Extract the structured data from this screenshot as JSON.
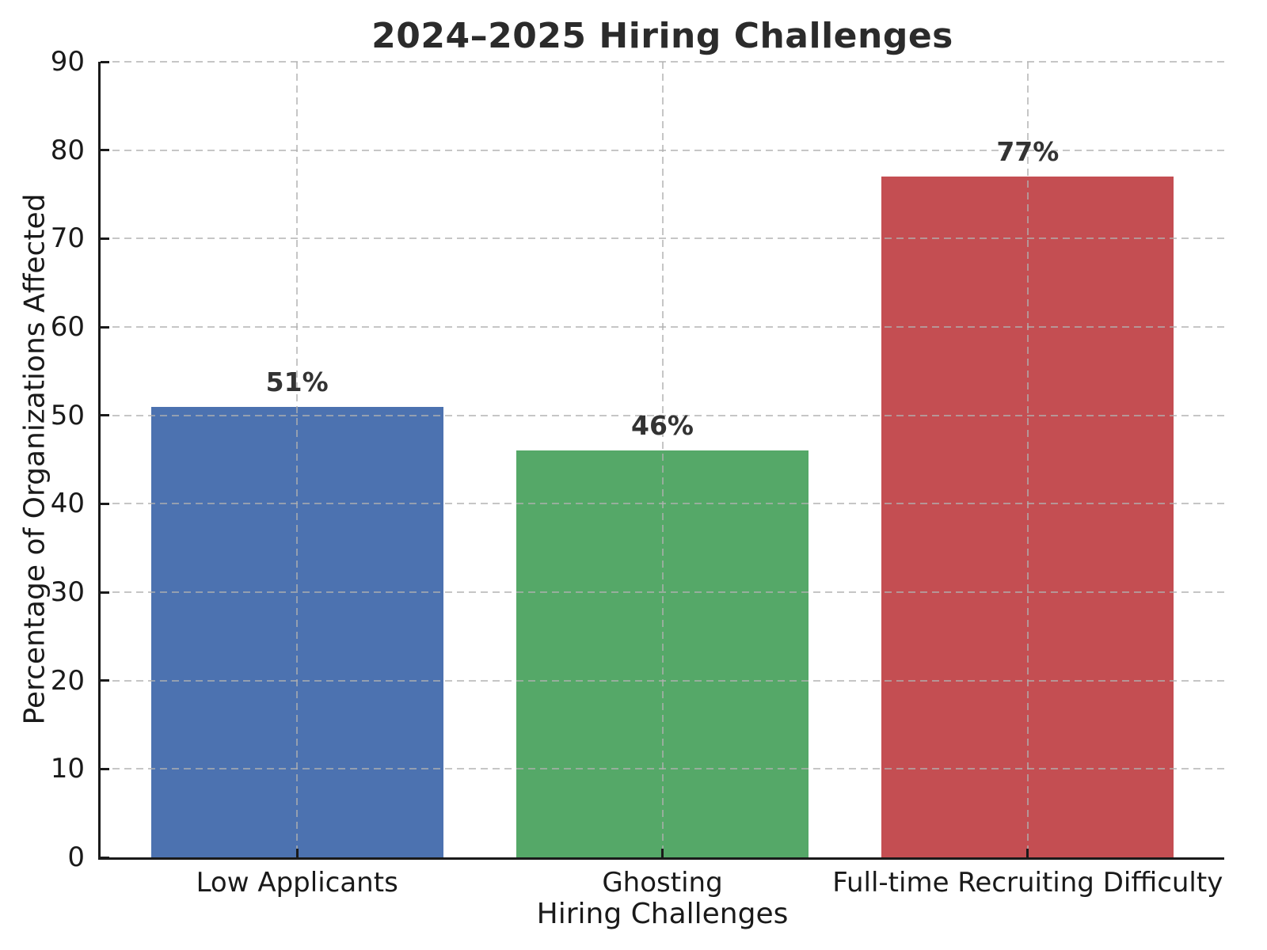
{
  "chart_data": {
    "type": "bar",
    "title": "2024–2025 Hiring Challenges",
    "xlabel": "Hiring Challenges",
    "ylabel": "Percentage of Organizations Affected",
    "categories": [
      "Low Applicants",
      "Ghosting",
      "Full-time Recruiting Difficulty"
    ],
    "values": [
      51,
      46,
      77
    ],
    "value_labels": [
      "51%",
      "46%",
      "77%"
    ],
    "bar_colors": [
      "#4C72B0",
      "#55A868",
      "#C44E52"
    ],
    "ylim": [
      0,
      90
    ],
    "yticks": [
      0,
      10,
      20,
      30,
      40,
      50,
      60,
      70,
      80,
      90
    ],
    "grid": {
      "enabled": true,
      "style": "dashed",
      "axes": "both",
      "color": "#b0b0b0",
      "above_bars": true
    },
    "legend": null,
    "spines": [
      "left",
      "bottom"
    ],
    "text_colors": {
      "title": "#2b2b2b",
      "ticks": "#1a1a1a",
      "axis_labels": "#1a1a1a",
      "value_labels": "#333333"
    },
    "background": "#ffffff"
  }
}
